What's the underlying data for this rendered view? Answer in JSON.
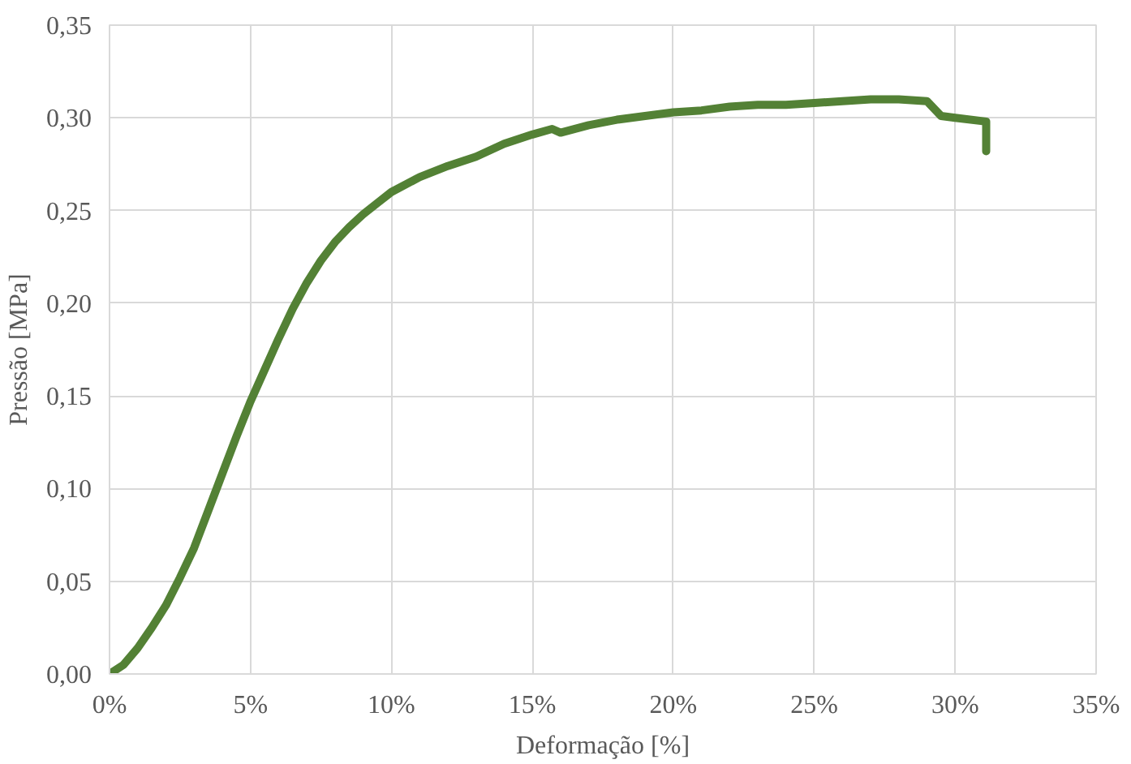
{
  "chart_data": {
    "type": "line",
    "xlabel": "Deformação [%]",
    "ylabel": "Pressão [MPa]",
    "xlim": [
      0,
      35
    ],
    "ylim": [
      0,
      0.35
    ],
    "xticks": [
      {
        "value": 0,
        "label": "0%"
      },
      {
        "value": 5,
        "label": "5%"
      },
      {
        "value": 10,
        "label": "10%"
      },
      {
        "value": 15,
        "label": "15%"
      },
      {
        "value": 20,
        "label": "20%"
      },
      {
        "value": 25,
        "label": "25%"
      },
      {
        "value": 30,
        "label": "30%"
      },
      {
        "value": 35,
        "label": "35%"
      }
    ],
    "yticks": [
      {
        "value": 0,
        "label": "0,00"
      },
      {
        "value": 0.05,
        "label": "0,05"
      },
      {
        "value": 0.1,
        "label": "0,10"
      },
      {
        "value": 0.15,
        "label": "0,15"
      },
      {
        "value": 0.2,
        "label": "0,20"
      },
      {
        "value": 0.25,
        "label": "0,25"
      },
      {
        "value": 0.3,
        "label": "0,30"
      },
      {
        "value": 0.35,
        "label": "0,35"
      }
    ],
    "grid": true,
    "line_style": "solid",
    "series": [
      {
        "color": "#538135",
        "x": [
          0,
          0.5,
          1,
          1.5,
          2,
          2.5,
          3,
          3.5,
          4,
          4.5,
          5,
          5.5,
          6,
          6.5,
          7,
          7.5,
          8,
          8.5,
          9,
          9.5,
          10,
          11,
          12,
          13,
          14,
          15,
          15.7,
          16,
          17,
          18,
          19,
          20,
          21,
          22,
          23,
          24,
          25,
          26,
          27,
          28,
          29,
          29.5,
          30,
          31.1,
          31.1
        ],
        "values": [
          0,
          0.005,
          0.014,
          0.025,
          0.037,
          0.052,
          0.068,
          0.088,
          0.108,
          0.128,
          0.147,
          0.164,
          0.181,
          0.197,
          0.211,
          0.223,
          0.233,
          0.241,
          0.248,
          0.254,
          0.26,
          0.268,
          0.274,
          0.279,
          0.286,
          0.291,
          0.294,
          0.292,
          0.296,
          0.299,
          0.301,
          0.303,
          0.304,
          0.306,
          0.307,
          0.307,
          0.308,
          0.309,
          0.31,
          0.31,
          0.309,
          0.301,
          0.3,
          0.298,
          0.282
        ]
      }
    ]
  }
}
